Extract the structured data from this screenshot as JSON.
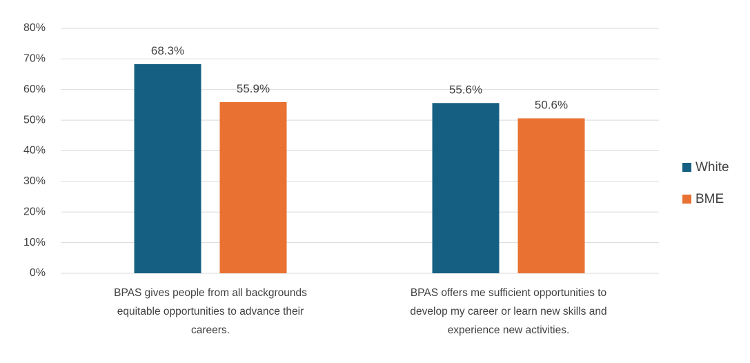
{
  "chart_data": {
    "type": "bar",
    "title": "",
    "xlabel": "",
    "ylabel": "",
    "categories": [
      [
        "BPAS gives people from all backgrounds",
        "equitable opportunities to advance their",
        "careers."
      ],
      [
        "BPAS offers me sufficient opportunities to",
        "develop my career or learn new skills and",
        "experience new activities."
      ]
    ],
    "series": [
      {
        "name": "White",
        "color": "#156082",
        "values": [
          68.3,
          55.6
        ],
        "labels": [
          "68.3%",
          "55.6%"
        ]
      },
      {
        "name": "BME",
        "color": "#e97132",
        "values": [
          55.9,
          50.6
        ],
        "labels": [
          "55.9%",
          "50.6%"
        ]
      }
    ],
    "ylim": [
      0,
      80
    ],
    "yticks": [
      0,
      10,
      20,
      30,
      40,
      50,
      60,
      70,
      80
    ],
    "ytick_labels": [
      "0%",
      "10%",
      "20%",
      "30%",
      "40%",
      "50%",
      "60%",
      "70%",
      "80%"
    ],
    "grid": true,
    "legend": "right"
  }
}
